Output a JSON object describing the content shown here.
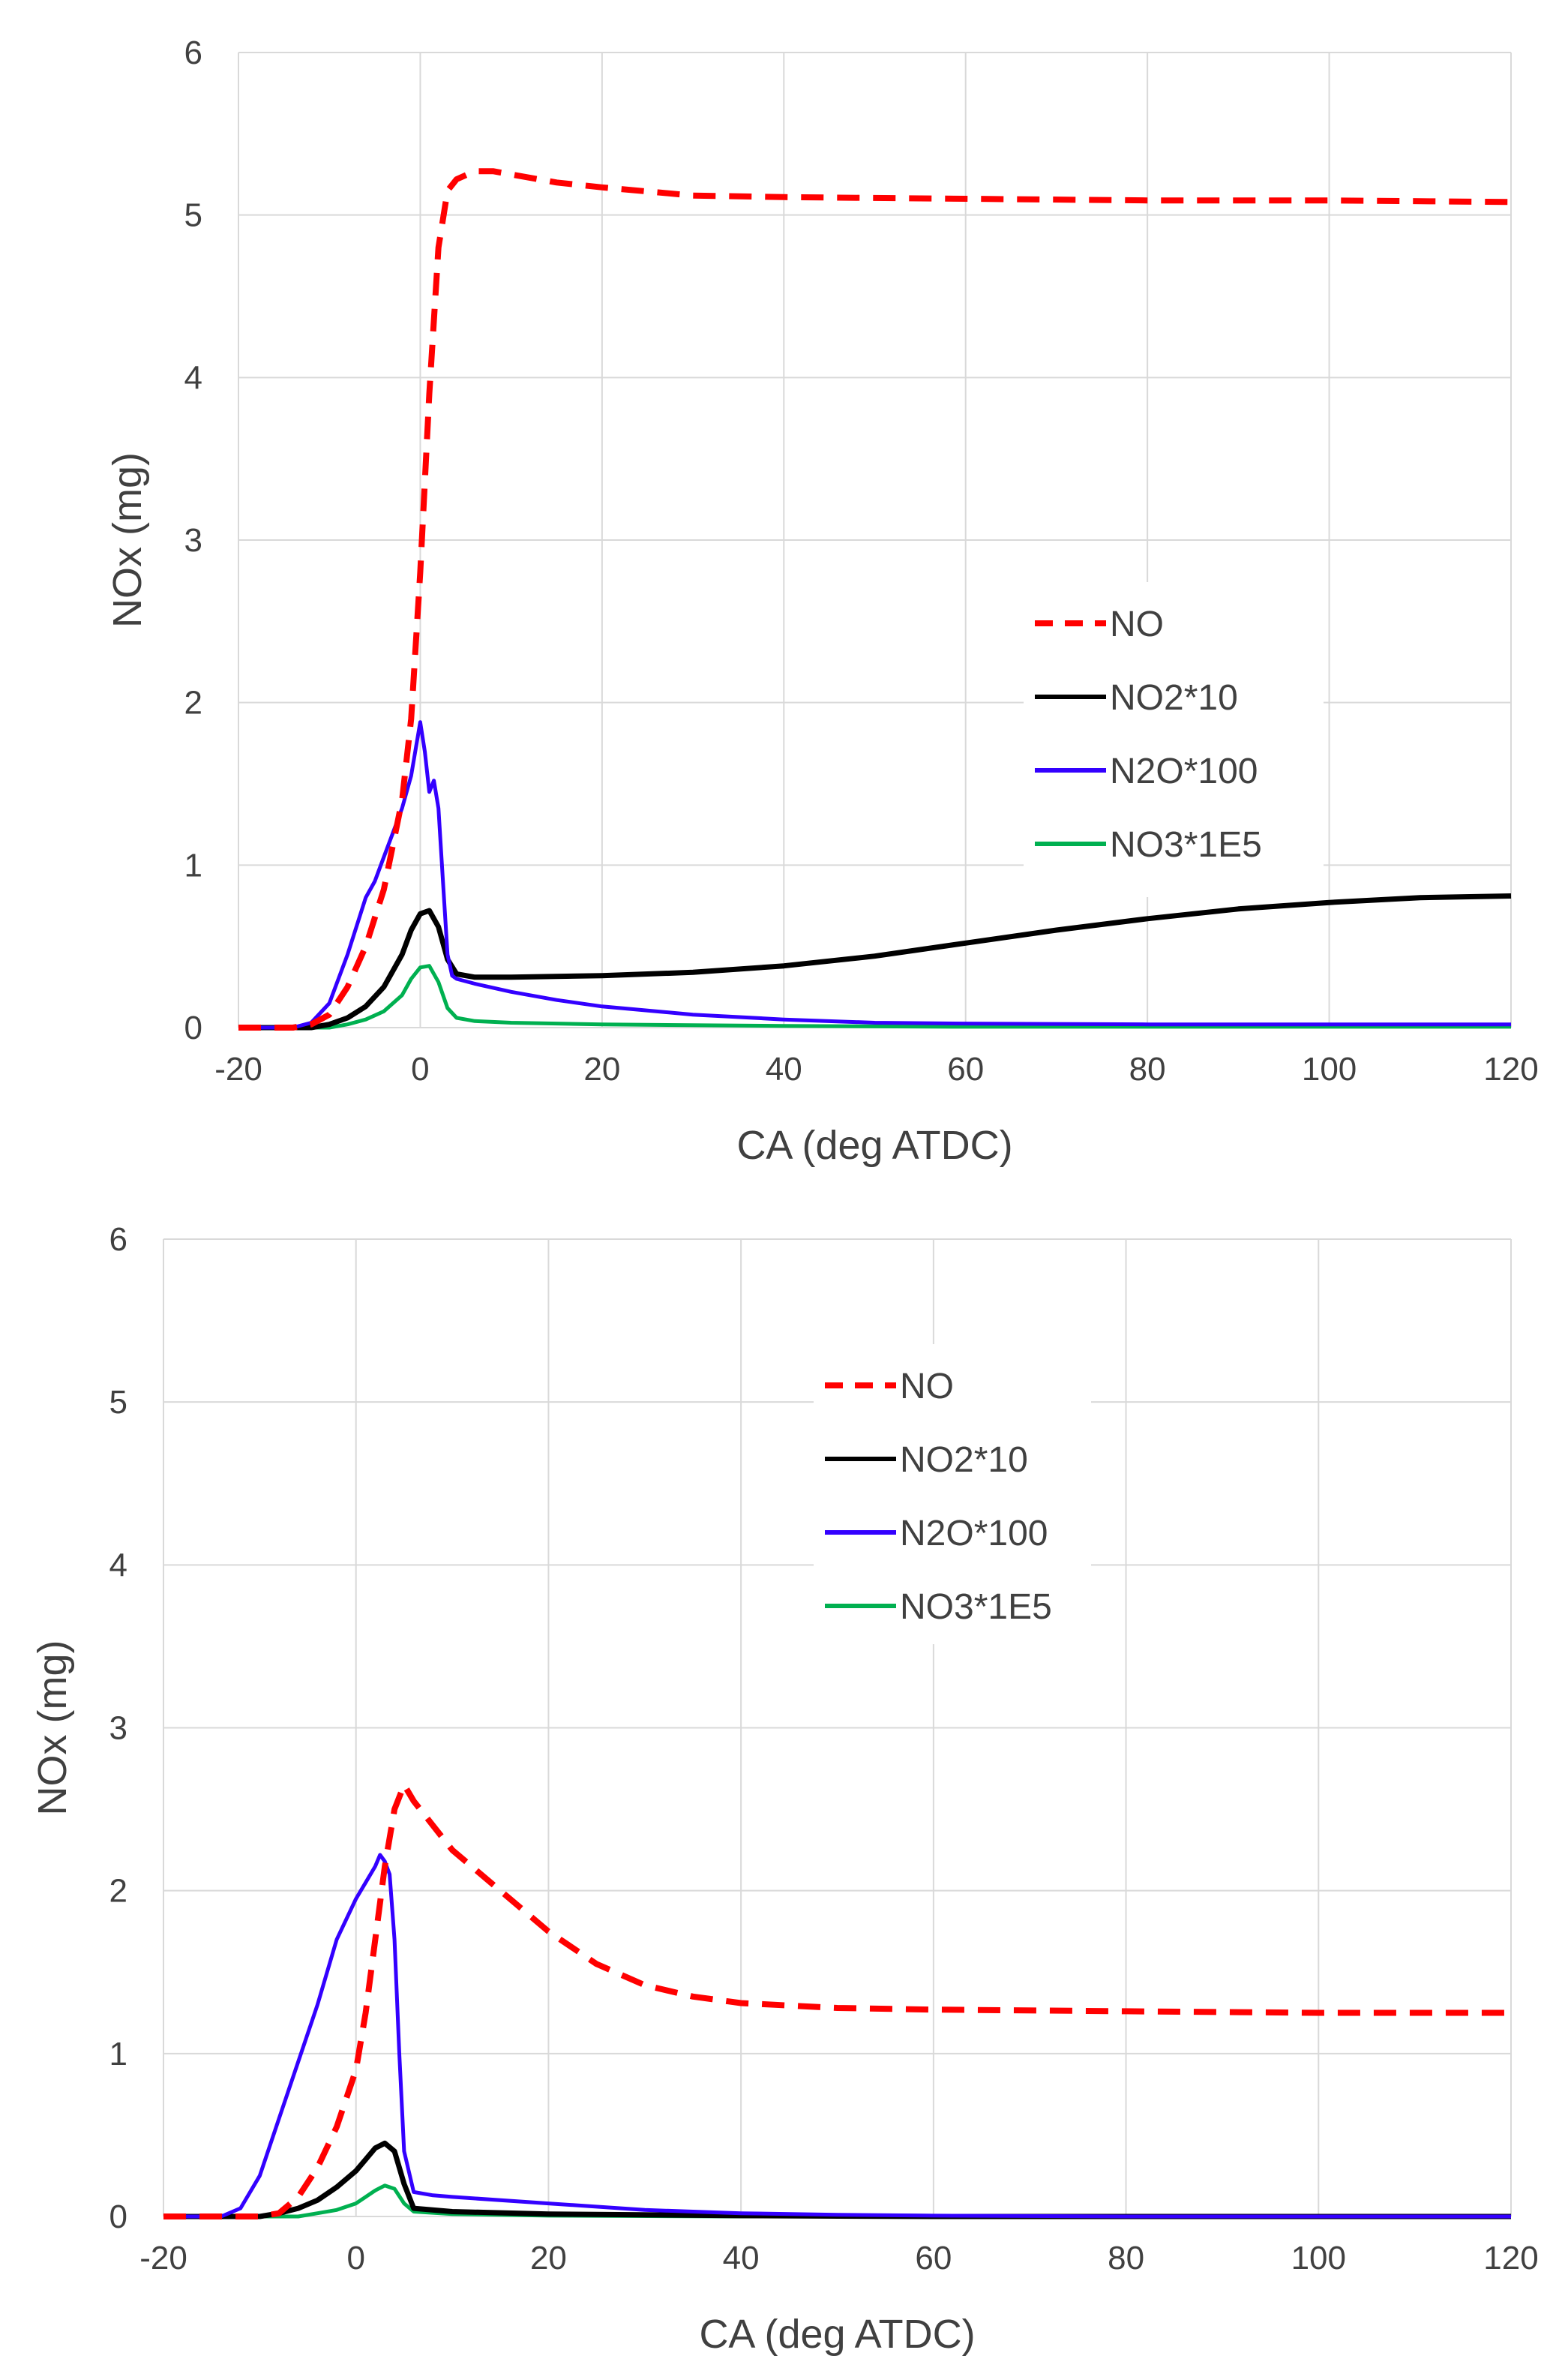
{
  "chart_data": [
    {
      "type": "line",
      "title": "",
      "xlabel": "CA (deg ATDC)",
      "ylabel": "NOx (mg)",
      "xlim": [
        -20,
        120
      ],
      "ylim": [
        0,
        6
      ],
      "xticks": [
        -20,
        0,
        20,
        40,
        60,
        80,
        100,
        120
      ],
      "yticks": [
        0,
        1,
        2,
        3,
        4,
        5,
        6
      ],
      "legend_position": "center-right",
      "series": [
        {
          "name": "NO",
          "color": "#ff0000",
          "style": "dashed",
          "x": [
            -20,
            -14,
            -12,
            -10,
            -8,
            -6,
            -4,
            -2,
            -1,
            0,
            1,
            2,
            3,
            4,
            6,
            8,
            10,
            15,
            20,
            30,
            40,
            60,
            80,
            100,
            120
          ],
          "y": [
            0,
            0,
            0.02,
            0.08,
            0.25,
            0.5,
            0.85,
            1.4,
            1.9,
            2.8,
            3.9,
            4.8,
            5.15,
            5.22,
            5.27,
            5.27,
            5.25,
            5.2,
            5.17,
            5.12,
            5.11,
            5.1,
            5.09,
            5.09,
            5.08
          ]
        },
        {
          "name": "NO2*10",
          "color": "#000000",
          "style": "solid",
          "x": [
            -20,
            -12,
            -10,
            -8,
            -6,
            -4,
            -2,
            -1,
            0,
            1,
            2,
            3,
            4,
            6,
            10,
            20,
            30,
            40,
            50,
            60,
            70,
            80,
            90,
            100,
            110,
            120
          ],
          "y": [
            0,
            0,
            0.02,
            0.06,
            0.13,
            0.25,
            0.45,
            0.6,
            0.7,
            0.72,
            0.62,
            0.42,
            0.33,
            0.31,
            0.31,
            0.32,
            0.34,
            0.38,
            0.44,
            0.52,
            0.6,
            0.67,
            0.73,
            0.77,
            0.8,
            0.81
          ]
        },
        {
          "name": "N2O*100",
          "color": "#3300ff",
          "style": "solid",
          "x": [
            -20,
            -14,
            -12,
            -10,
            -8,
            -6,
            -5,
            -4,
            -3,
            -2,
            -1,
            0,
            0.5,
            1,
            1.5,
            2,
            2.5,
            3,
            3.5,
            4,
            6,
            10,
            15,
            20,
            30,
            40,
            50,
            60,
            80,
            100,
            120
          ],
          "y": [
            0,
            0,
            0.03,
            0.15,
            0.45,
            0.8,
            0.9,
            1.05,
            1.2,
            1.35,
            1.55,
            1.88,
            1.7,
            1.45,
            1.52,
            1.35,
            0.9,
            0.45,
            0.32,
            0.3,
            0.27,
            0.22,
            0.17,
            0.13,
            0.08,
            0.05,
            0.03,
            0.025,
            0.02,
            0.02,
            0.02
          ]
        },
        {
          "name": "NO3*1E5",
          "color": "#00b050",
          "style": "solid",
          "x": [
            -20,
            -10,
            -8,
            -6,
            -4,
            -2,
            -1,
            0,
            1,
            2,
            3,
            4,
            6,
            10,
            20,
            40,
            60,
            120
          ],
          "y": [
            0,
            0,
            0.02,
            0.05,
            0.1,
            0.2,
            0.3,
            0.37,
            0.38,
            0.28,
            0.12,
            0.06,
            0.04,
            0.03,
            0.02,
            0.01,
            0.005,
            0.005
          ]
        }
      ]
    },
    {
      "type": "line",
      "title": "",
      "xlabel": "CA (deg ATDC)",
      "ylabel": "NOx (mg)",
      "xlim": [
        -20,
        120
      ],
      "ylim": [
        0,
        6
      ],
      "xticks": [
        -20,
        0,
        20,
        40,
        60,
        80,
        100,
        120
      ],
      "yticks": [
        0,
        1,
        2,
        3,
        4,
        5,
        6
      ],
      "legend_position": "top-center",
      "series": [
        {
          "name": "NO",
          "color": "#ff0000",
          "style": "dashed",
          "x": [
            -20,
            -10,
            -8,
            -6,
            -4,
            -2,
            0,
            1,
            2,
            3,
            4,
            5,
            6,
            8,
            10,
            15,
            20,
            25,
            30,
            35,
            40,
            50,
            60,
            80,
            100,
            120
          ],
          "y": [
            0,
            0,
            0.02,
            0.12,
            0.3,
            0.55,
            0.9,
            1.25,
            1.7,
            2.15,
            2.5,
            2.65,
            2.55,
            2.4,
            2.25,
            2.0,
            1.75,
            1.55,
            1.42,
            1.35,
            1.31,
            1.28,
            1.27,
            1.26,
            1.25,
            1.25
          ]
        },
        {
          "name": "NO2*10",
          "color": "#000000",
          "style": "solid",
          "x": [
            -20,
            -10,
            -8,
            -6,
            -4,
            -2,
            0,
            1,
            2,
            3,
            4,
            5,
            6,
            10,
            20,
            40,
            60,
            120
          ],
          "y": [
            0,
            0,
            0.02,
            0.05,
            0.1,
            0.18,
            0.28,
            0.35,
            0.42,
            0.45,
            0.4,
            0.2,
            0.05,
            0.03,
            0.015,
            0.005,
            0,
            0
          ]
        },
        {
          "name": "N2O*100",
          "color": "#3300ff",
          "style": "solid",
          "x": [
            -20,
            -14,
            -12,
            -10,
            -8,
            -6,
            -4,
            -2,
            0,
            1,
            2,
            2.5,
            3,
            3.5,
            4,
            4.5,
            5,
            6,
            8,
            10,
            20,
            30,
            40,
            50,
            60,
            80,
            100,
            120
          ],
          "y": [
            0,
            0,
            0.05,
            0.25,
            0.6,
            0.95,
            1.3,
            1.7,
            1.95,
            2.05,
            2.15,
            2.22,
            2.18,
            2.1,
            1.7,
            1.0,
            0.4,
            0.15,
            0.13,
            0.12,
            0.08,
            0.04,
            0.02,
            0.01,
            0.005,
            0,
            0,
            0
          ]
        },
        {
          "name": "NO3*1E5",
          "color": "#00b050",
          "style": "solid",
          "x": [
            -20,
            -6,
            -4,
            -2,
            0,
            1,
            2,
            3,
            4,
            5,
            6,
            10,
            20,
            40,
            120
          ],
          "y": [
            0,
            0,
            0.02,
            0.04,
            0.08,
            0.12,
            0.16,
            0.19,
            0.17,
            0.08,
            0.03,
            0.015,
            0.005,
            0,
            0
          ]
        }
      ]
    }
  ]
}
